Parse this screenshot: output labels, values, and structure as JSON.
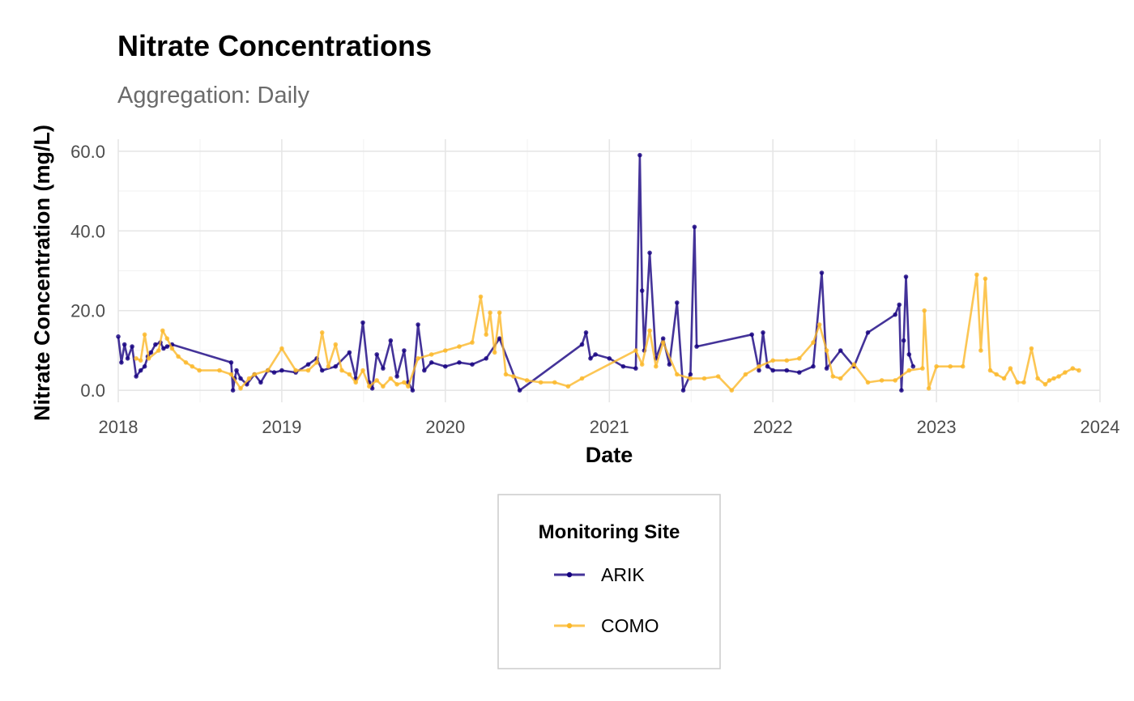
{
  "chart_data": {
    "type": "line",
    "title": "Nitrate Concentrations",
    "subtitle": "Aggregation: Daily",
    "xlabel": "Date",
    "ylabel": "Nitrate Concentration (mg/L)",
    "x_type": "date",
    "xlim": [
      "2018-01-01",
      "2024-01-01"
    ],
    "ylim": [
      -3,
      63
    ],
    "x_ticks": [
      "2018-01-01",
      "2019-01-01",
      "2020-01-01",
      "2021-01-01",
      "2022-01-01",
      "2023-01-01",
      "2024-01-01"
    ],
    "x_tick_labels": [
      "2018",
      "2019",
      "2020",
      "2021",
      "2022",
      "2023",
      "2024"
    ],
    "y_ticks": [
      0,
      20,
      40,
      60
    ],
    "y_tick_labels": [
      "0.0",
      "20.0",
      "40.0",
      "60.0"
    ],
    "grid": true,
    "legend": {
      "title": "Monitoring Site",
      "placement": "bottom",
      "entries": [
        "ARIK",
        "COMO"
      ]
    },
    "series": [
      {
        "name": "ARIK",
        "color": "#15007f",
        "x": [
          "2018-01-01",
          "2018-01-08",
          "2018-01-15",
          "2018-01-22",
          "2018-02-01",
          "2018-02-10",
          "2018-02-20",
          "2018-03-01",
          "2018-03-08",
          "2018-03-15",
          "2018-03-25",
          "2018-04-05",
          "2018-04-12",
          "2018-04-20",
          "2018-05-01",
          "2018-09-10",
          "2018-09-14",
          "2018-09-18",
          "2018-09-22",
          "2018-10-01",
          "2018-10-15",
          "2018-11-01",
          "2018-11-15",
          "2018-12-01",
          "2018-12-15",
          "2019-01-01",
          "2019-02-01",
          "2019-03-01",
          "2019-03-20",
          "2019-04-01",
          "2019-05-01",
          "2019-06-01",
          "2019-06-15",
          "2019-07-01",
          "2019-07-15",
          "2019-07-22",
          "2019-08-01",
          "2019-08-15",
          "2019-09-01",
          "2019-09-15",
          "2019-10-01",
          "2019-10-10",
          "2019-10-20",
          "2019-11-01",
          "2019-11-15",
          "2019-12-01",
          "2020-01-01",
          "2020-02-01",
          "2020-03-01",
          "2020-04-01",
          "2020-05-01",
          "2020-06-15",
          "2020-11-01",
          "2020-11-10",
          "2020-11-20",
          "2020-12-01",
          "2021-01-01",
          "2021-02-01",
          "2021-03-01",
          "2021-03-10",
          "2021-03-15",
          "2021-03-20",
          "2021-04-01",
          "2021-04-15",
          "2021-05-01",
          "2021-05-15",
          "2021-06-01",
          "2021-06-15",
          "2021-07-01",
          "2021-07-10",
          "2021-07-15",
          "2021-11-15",
          "2021-12-01",
          "2021-12-10",
          "2021-12-20",
          "2022-01-01",
          "2022-02-01",
          "2022-03-01",
          "2022-04-01",
          "2022-04-20",
          "2022-05-01",
          "2022-06-01",
          "2022-07-01",
          "2022-08-01",
          "2022-10-01",
          "2022-10-10",
          "2022-10-15",
          "2022-10-20",
          "2022-10-25",
          "2022-11-01",
          "2022-11-10"
        ],
        "values": [
          13.5,
          7.0,
          11.5,
          8.0,
          11.0,
          3.5,
          5.0,
          6.0,
          8.5,
          9.5,
          11.5,
          12.0,
          10.5,
          11.0,
          11.5,
          7.0,
          0.0,
          3.0,
          5.0,
          3.0,
          1.5,
          4.0,
          2.0,
          5.0,
          4.5,
          5.0,
          4.5,
          6.5,
          8.0,
          5.0,
          6.0,
          9.5,
          3.0,
          17.0,
          2.0,
          0.5,
          9.0,
          5.5,
          12.5,
          3.5,
          10.0,
          2.0,
          0.0,
          16.5,
          5.0,
          7.0,
          6.0,
          7.0,
          6.5,
          8.0,
          13.0,
          0.0,
          11.5,
          14.5,
          8.0,
          9.0,
          8.0,
          6.0,
          5.5,
          59.0,
          25.0,
          10.0,
          34.5,
          8.0,
          13.0,
          6.5,
          22.0,
          0.0,
          4.0,
          41.0,
          11.0,
          14.0,
          5.0,
          14.5,
          6.0,
          5.0,
          5.0,
          4.5,
          6.0,
          29.5,
          5.5,
          10.0,
          6.0,
          14.5,
          19.0,
          21.5,
          0.0,
          12.5,
          28.5,
          9.0,
          6.0
        ]
      },
      {
        "name": "COMO",
        "color": "#fbb829",
        "x": [
          "2018-02-10",
          "2018-02-20",
          "2018-03-01",
          "2018-03-10",
          "2018-04-01",
          "2018-04-10",
          "2018-04-20",
          "2018-05-01",
          "2018-05-15",
          "2018-06-01",
          "2018-06-15",
          "2018-07-01",
          "2018-08-15",
          "2018-09-10",
          "2018-10-01",
          "2018-10-20",
          "2018-11-01",
          "2018-12-01",
          "2019-01-01",
          "2019-02-01",
          "2019-03-01",
          "2019-03-20",
          "2019-04-01",
          "2019-04-15",
          "2019-05-01",
          "2019-05-15",
          "2019-06-01",
          "2019-06-15",
          "2019-07-01",
          "2019-07-15",
          "2019-08-01",
          "2019-08-15",
          "2019-09-01",
          "2019-09-15",
          "2019-10-01",
          "2019-10-10",
          "2019-11-01",
          "2019-12-01",
          "2020-01-01",
          "2020-02-01",
          "2020-03-01",
          "2020-03-20",
          "2020-04-01",
          "2020-04-10",
          "2020-04-20",
          "2020-05-01",
          "2020-05-15",
          "2020-06-01",
          "2020-07-01",
          "2020-08-01",
          "2020-09-01",
          "2020-10-01",
          "2020-11-01",
          "2021-03-01",
          "2021-03-15",
          "2021-04-01",
          "2021-04-15",
          "2021-05-01",
          "2021-06-01",
          "2021-07-01",
          "2021-08-01",
          "2021-09-01",
          "2021-10-01",
          "2021-11-01",
          "2021-12-01",
          "2022-01-01",
          "2022-02-01",
          "2022-03-01",
          "2022-04-01",
          "2022-04-15",
          "2022-05-01",
          "2022-05-15",
          "2022-06-01",
          "2022-07-01",
          "2022-08-01",
          "2022-09-01",
          "2022-10-01",
          "2022-11-01",
          "2022-12-01",
          "2022-12-05",
          "2022-12-15",
          "2023-01-01",
          "2023-02-01",
          "2023-03-01",
          "2023-04-01",
          "2023-04-10",
          "2023-04-20",
          "2023-05-01",
          "2023-05-15",
          "2023-06-01",
          "2023-06-15",
          "2023-07-01",
          "2023-07-15",
          "2023-08-01",
          "2023-08-15",
          "2023-09-01",
          "2023-09-10",
          "2023-09-20",
          "2023-10-01",
          "2023-10-15",
          "2023-11-01",
          "2023-11-15"
        ],
        "values": [
          8.0,
          7.5,
          14.0,
          8.0,
          10.0,
          15.0,
          13.0,
          10.5,
          8.5,
          7.0,
          6.0,
          5.0,
          5.0,
          4.0,
          0.5,
          3.0,
          4.0,
          5.0,
          10.5,
          5.0,
          5.0,
          7.0,
          14.5,
          6.0,
          11.5,
          5.0,
          4.0,
          2.0,
          5.0,
          1.0,
          2.5,
          1.0,
          3.0,
          1.5,
          2.0,
          1.0,
          8.0,
          9.0,
          10.0,
          11.0,
          12.0,
          23.5,
          14.0,
          19.5,
          9.5,
          19.5,
          4.0,
          3.5,
          2.5,
          2.0,
          2.0,
          1.0,
          3.0,
          10.0,
          6.5,
          15.0,
          6.0,
          12.0,
          4.0,
          3.0,
          3.0,
          3.5,
          0.0,
          4.0,
          6.0,
          7.5,
          7.5,
          8.0,
          12.0,
          16.5,
          10.0,
          3.5,
          3.0,
          6.5,
          2.0,
          2.5,
          2.5,
          5.0,
          5.5,
          20.0,
          0.5,
          6.0,
          6.0,
          6.0,
          29.0,
          10.0,
          28.0,
          5.0,
          4.0,
          3.0,
          5.5,
          2.0,
          2.0,
          10.5,
          3.0,
          1.5,
          2.5,
          3.0,
          3.5,
          4.5,
          5.5,
          5.0
        ]
      }
    ]
  }
}
